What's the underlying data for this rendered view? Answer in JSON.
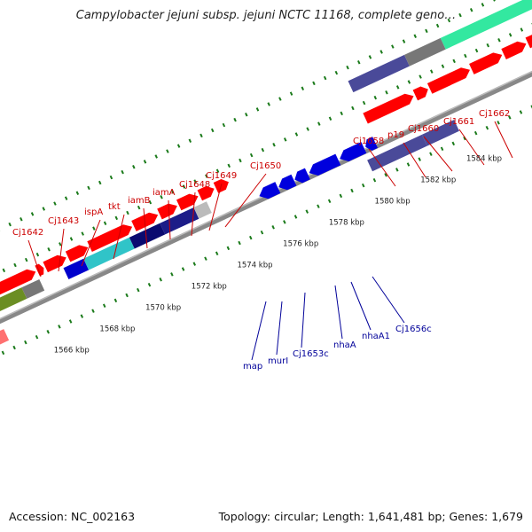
{
  "title": "Campylobacter jejuni subsp. jejuni NCTC 11168, complete geno…",
  "footer": {
    "accession": "Accession: NC_002163",
    "summary": "Topology: circular; Length: 1,641,481 bp; Genes: 1,679"
  },
  "colors": {
    "forward_label": "#cc0000",
    "reverse_label": "#000099",
    "cds": "#ff0000",
    "reverse_cds": "#0000dd",
    "backbone": "#888888",
    "tick": "#1a7a1a"
  },
  "scale_labels": [
    "1566 kbp",
    "1568 kbp",
    "1570 kbp",
    "1572 kbp",
    "1574 kbp",
    "1576 kbp",
    "1578 kbp",
    "1580 kbp",
    "1582 kbp",
    "1584 kbp"
  ],
  "forward_genes": [
    "Cj1642",
    "Cj1643",
    "ispA",
    "tkt",
    "iamB",
    "iamA",
    "Cj1648",
    "Cj1649",
    "Cj1650",
    "Cj1658",
    "p19",
    "Cj1660",
    "Cj1661",
    "Cj1662"
  ],
  "reverse_genes": [
    "map",
    "murI",
    "Cj1653c",
    "nhaA",
    "nhaA1",
    "Cj1656c"
  ]
}
